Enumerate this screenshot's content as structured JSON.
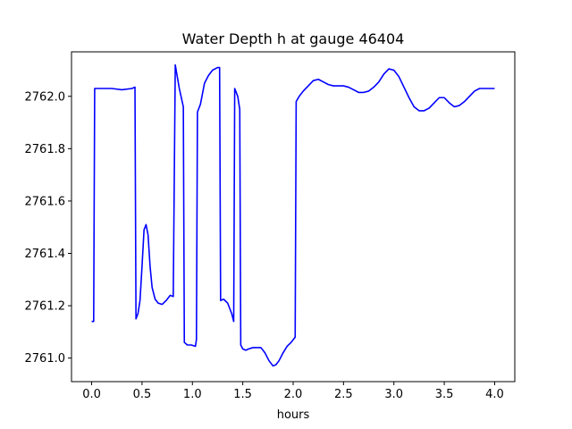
{
  "chart_data": {
    "type": "line",
    "title": "Water Depth h at gauge 46404",
    "xlabel": "hours",
    "ylabel": "",
    "xlim": [
      -0.2,
      4.2
    ],
    "ylim": [
      2760.91,
      2762.17
    ],
    "x_ticks": [
      0.0,
      0.5,
      1.0,
      1.5,
      2.0,
      2.5,
      3.0,
      3.5,
      4.0
    ],
    "x_tick_labels": [
      "0.0",
      "0.5",
      "1.0",
      "1.5",
      "2.0",
      "2.5",
      "3.0",
      "3.5",
      "4.0"
    ],
    "y_ticks": [
      2761.0,
      2761.2,
      2761.4,
      2761.6,
      2761.8,
      2762.0
    ],
    "y_tick_labels": [
      "2761.0",
      "2761.2",
      "2761.4",
      "2761.6",
      "2761.8",
      "2762.0"
    ],
    "grid": false,
    "legend": "none",
    "series": [
      {
        "color": "#0000ff",
        "x": [
          0.0,
          0.02,
          0.03,
          0.1,
          0.2,
          0.3,
          0.4,
          0.43,
          0.44,
          0.46,
          0.48,
          0.5,
          0.52,
          0.54,
          0.56,
          0.58,
          0.6,
          0.63,
          0.66,
          0.7,
          0.74,
          0.78,
          0.81,
          0.83,
          0.83,
          0.87,
          0.91,
          0.92,
          0.95,
          0.99,
          1.03,
          1.04,
          1.05,
          1.08,
          1.12,
          1.16,
          1.2,
          1.25,
          1.27,
          1.28,
          1.31,
          1.35,
          1.39,
          1.41,
          1.42,
          1.45,
          1.47,
          1.48,
          1.5,
          1.53,
          1.56,
          1.6,
          1.64,
          1.68,
          1.72,
          1.76,
          1.8,
          1.83,
          1.86,
          1.9,
          1.94,
          1.98,
          2.02,
          2.03,
          2.06,
          2.1,
          2.15,
          2.2,
          2.25,
          2.3,
          2.35,
          2.4,
          2.5,
          2.55,
          2.6,
          2.65,
          2.7,
          2.75,
          2.8,
          2.85,
          2.9,
          2.95,
          3.0,
          3.05,
          3.1,
          3.15,
          3.2,
          3.25,
          3.3,
          3.35,
          3.4,
          3.45,
          3.5,
          3.55,
          3.6,
          3.65,
          3.7,
          3.75,
          3.8,
          3.85,
          3.9,
          3.95,
          4.0
        ],
        "y": [
          2761.14,
          2761.14,
          2762.03,
          2762.03,
          2762.03,
          2762.025,
          2762.03,
          2762.035,
          2761.15,
          2761.17,
          2761.22,
          2761.35,
          2761.49,
          2761.51,
          2761.47,
          2761.35,
          2761.27,
          2761.225,
          2761.21,
          2761.205,
          2761.22,
          2761.24,
          2761.235,
          2762.12,
          2762.12,
          2762.03,
          2761.96,
          2761.06,
          2761.05,
          2761.05,
          2761.045,
          2761.07,
          2761.94,
          2761.97,
          2762.05,
          2762.08,
          2762.1,
          2762.11,
          2762.11,
          2761.22,
          2761.225,
          2761.21,
          2761.17,
          2761.14,
          2762.03,
          2762.0,
          2761.95,
          2761.05,
          2761.035,
          2761.03,
          2761.035,
          2761.04,
          2761.04,
          2761.04,
          2761.02,
          2760.99,
          2760.97,
          2760.975,
          2760.99,
          2761.02,
          2761.045,
          2761.06,
          2761.08,
          2761.98,
          2762.0,
          2762.02,
          2762.04,
          2762.06,
          2762.065,
          2762.055,
          2762.045,
          2762.04,
          2762.04,
          2762.035,
          2762.025,
          2762.015,
          2762.015,
          2762.02,
          2762.035,
          2762.055,
          2762.085,
          2762.105,
          2762.1,
          2762.075,
          2762.035,
          2761.995,
          2761.96,
          2761.945,
          2761.945,
          2761.955,
          2761.975,
          2761.995,
          2761.995,
          2761.975,
          2761.96,
          2761.965,
          2761.98,
          2762.0,
          2762.02,
          2762.03,
          2762.03,
          2762.03,
          2762.03
        ]
      }
    ]
  }
}
